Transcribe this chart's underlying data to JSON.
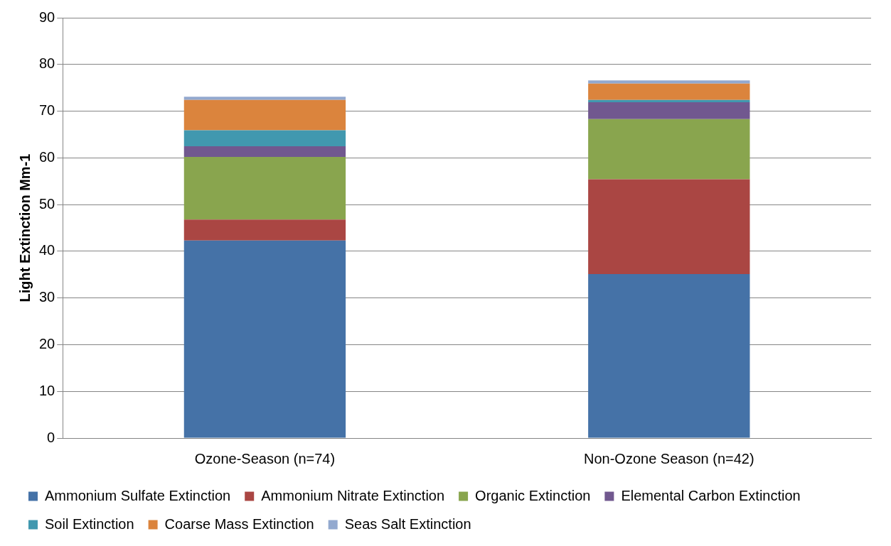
{
  "chart_data": {
    "type": "bar",
    "stacked": true,
    "ylabel": "Light Extinction Mm-1",
    "categories": [
      "Ozone-Season (n=74)",
      "Non-Ozone Season (n=42)"
    ],
    "series": [
      {
        "name": "Ammonium Sulfate Extinction",
        "color": "#4572a7",
        "values": [
          42.3,
          35.1
        ]
      },
      {
        "name": "Ammonium Nitrate Extinction",
        "color": "#aa4643",
        "values": [
          4.5,
          20.3
        ]
      },
      {
        "name": "Organic Extinction",
        "color": "#89a54e",
        "values": [
          13.4,
          12.9
        ]
      },
      {
        "name": "Elemental Carbon Extinction",
        "color": "#71588f",
        "values": [
          2.3,
          3.6
        ]
      },
      {
        "name": "Soil Extinction",
        "color": "#4198af",
        "values": [
          3.4,
          0.5
        ]
      },
      {
        "name": "Coarse Mass Extinction",
        "color": "#db843d",
        "values": [
          6.5,
          3.5
        ]
      },
      {
        "name": "Seas Salt Extinction",
        "color": "#93a9cf",
        "values": [
          0.7,
          0.7
        ]
      }
    ],
    "ylim": [
      0,
      90
    ],
    "yticks": [
      0,
      10,
      20,
      30,
      40,
      50,
      60,
      70,
      80,
      90
    ],
    "grid": "y",
    "legend": "bottom"
  }
}
